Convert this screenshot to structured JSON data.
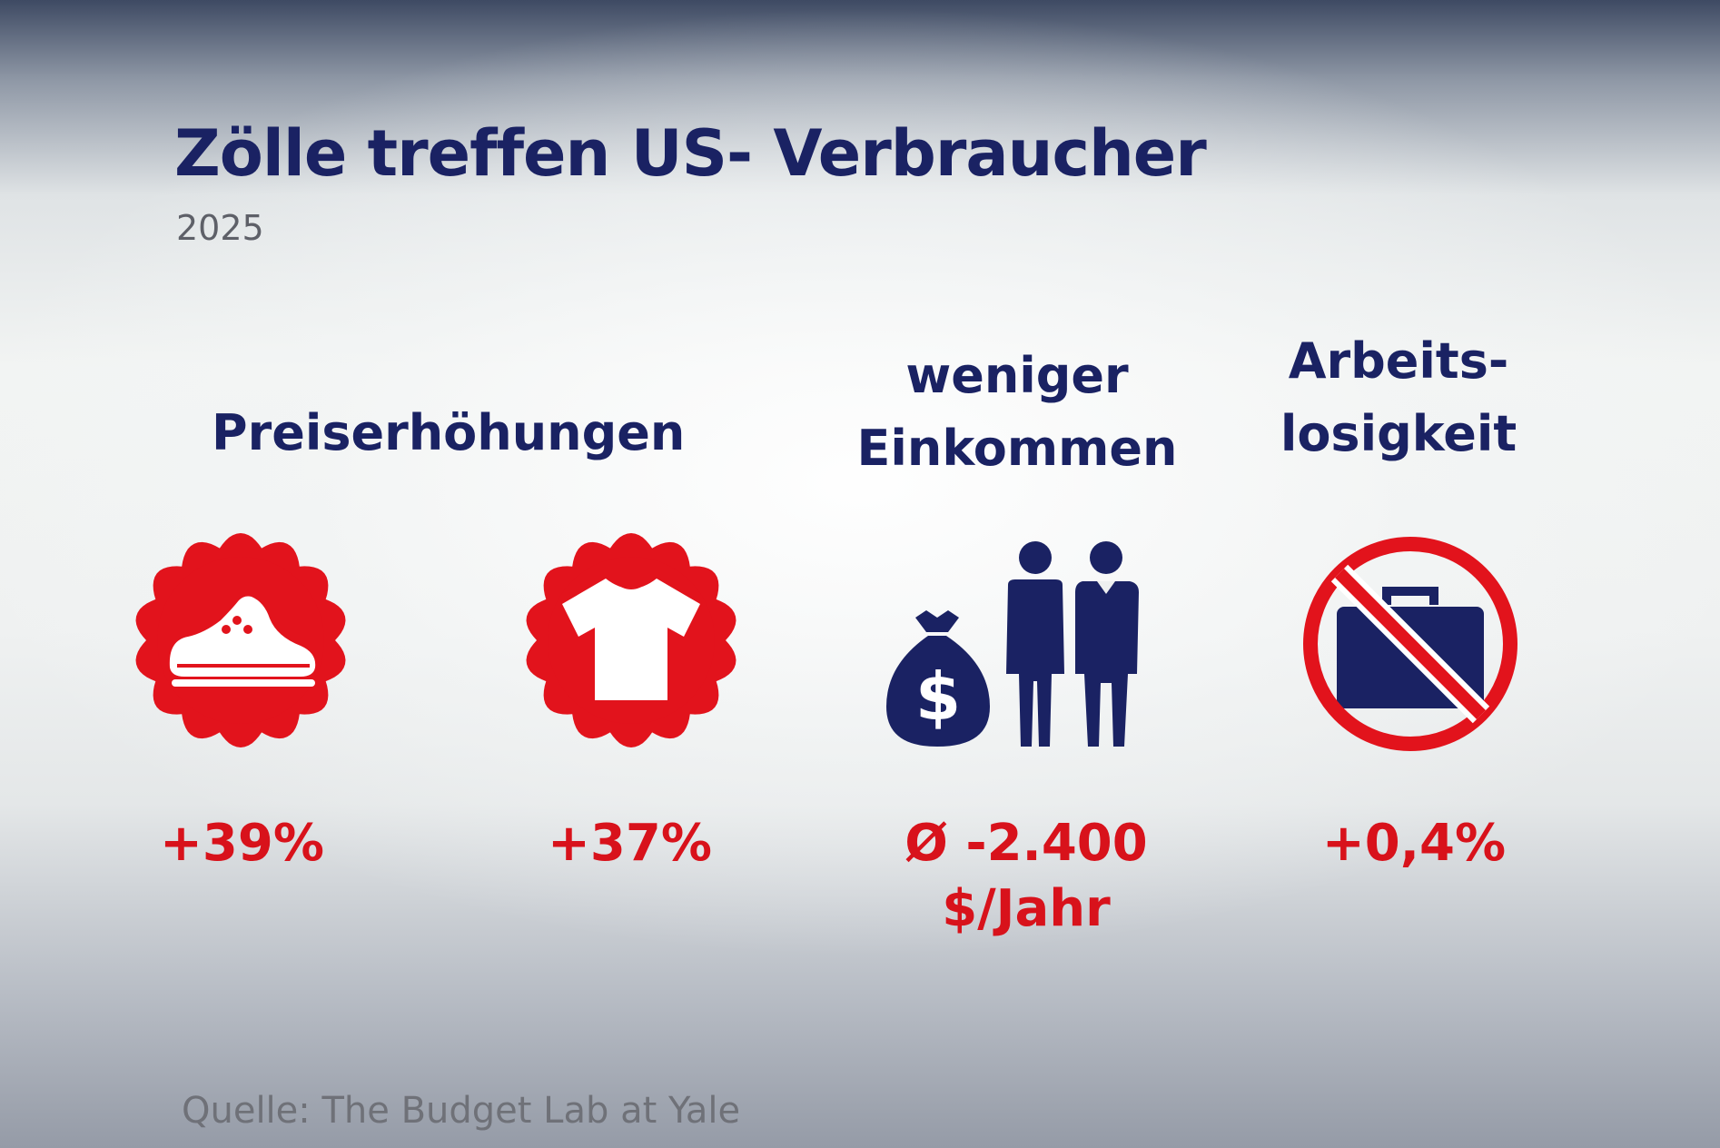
{
  "title": "Zölle treffen US- Verbraucher",
  "subtitle": "2025",
  "sections": {
    "price_increases": {
      "heading": "Preiserhöhungen",
      "items": [
        {
          "icon": "shoe-icon",
          "value": "+39%"
        },
        {
          "icon": "tshirt-icon",
          "value": "+37%"
        }
      ]
    },
    "less_income": {
      "heading_line1": "weniger",
      "heading_line2": "Einkommen",
      "icon": "money-bag-people-icon",
      "value_line1": "Ø -2.400",
      "value_line2": "$/Jahr"
    },
    "unemployment": {
      "heading_line1": "Arbeits-",
      "heading_line2": "losigkeit",
      "icon": "no-briefcase-icon",
      "value": "+0,4%"
    }
  },
  "source": "Quelle: The Budget Lab at Yale",
  "colors": {
    "navy": "#1a2263",
    "red": "#d8121b",
    "gray": "#5e6068"
  }
}
